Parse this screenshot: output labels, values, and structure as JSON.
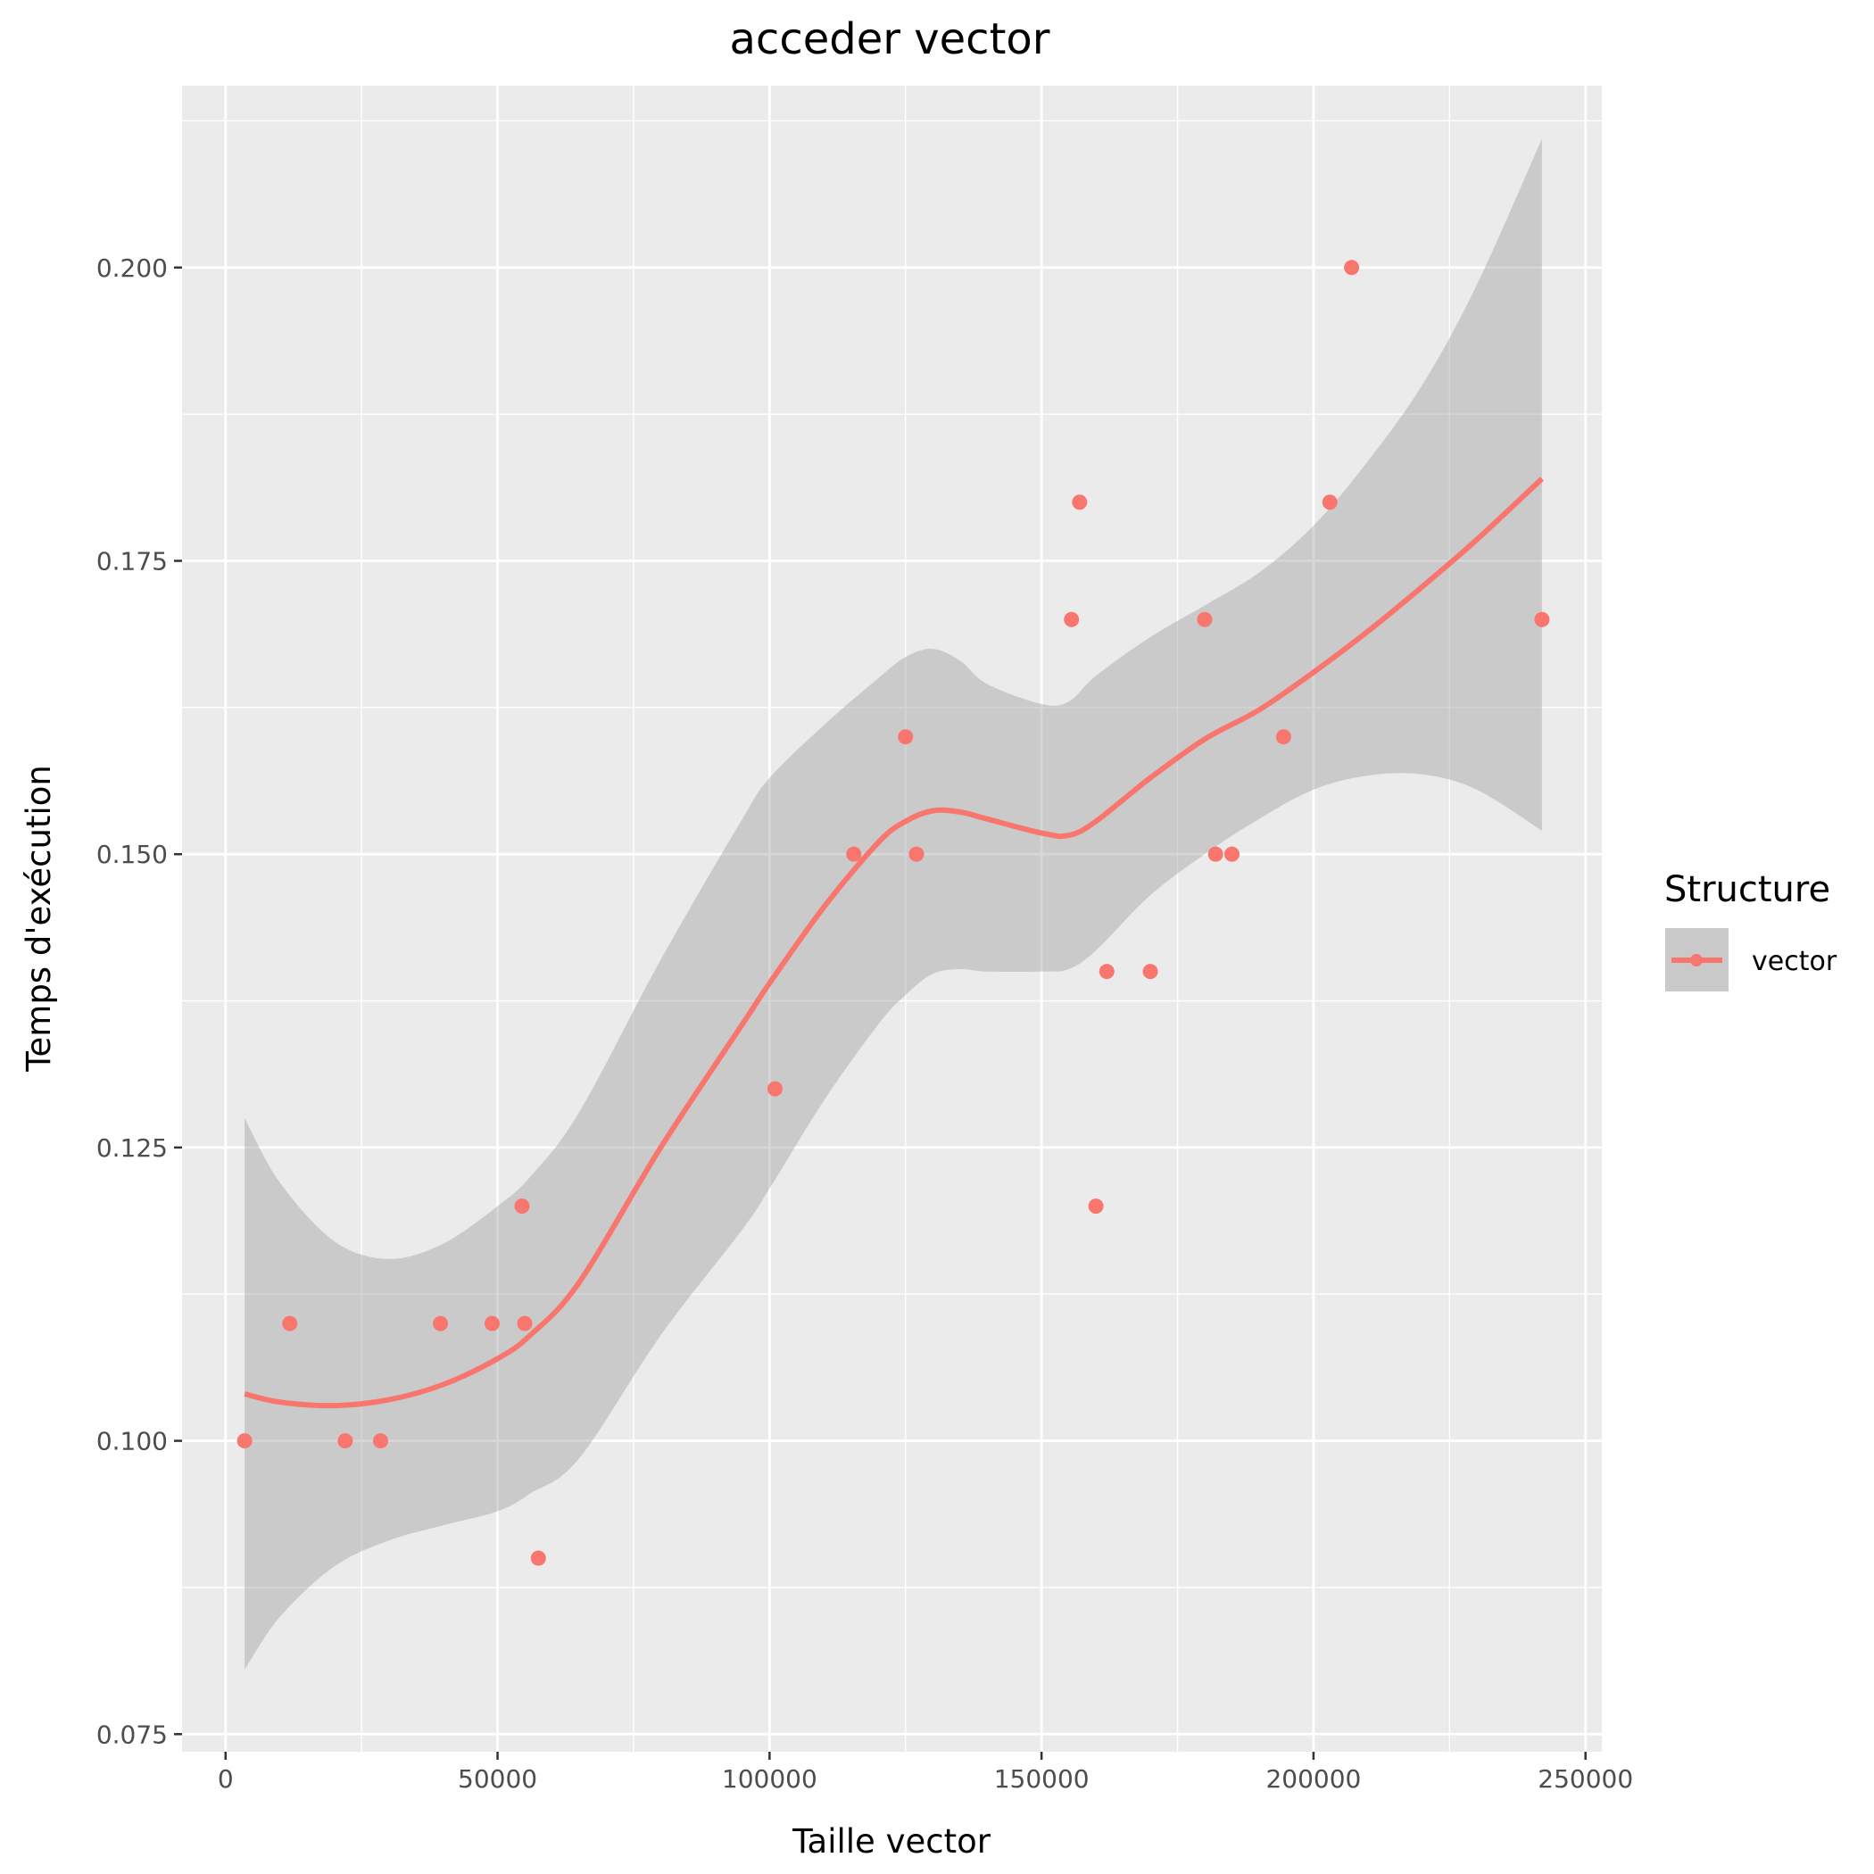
{
  "chart_data": {
    "type": "scatter",
    "title": "acceder vector",
    "xlabel": "Taille vector",
    "ylabel": "Temps d'exécution",
    "xlim": [
      -8000,
      253000
    ],
    "ylim": [
      0.0735,
      0.2155
    ],
    "x_ticks": [
      0,
      50000,
      100000,
      150000,
      200000,
      250000
    ],
    "x_tick_labels": [
      "0",
      "50000",
      "100000",
      "150000",
      "200000",
      "250000"
    ],
    "y_ticks": [
      0.075,
      0.1,
      0.125,
      0.15,
      0.175,
      0.2
    ],
    "y_tick_labels": [
      "0.075",
      "0.100",
      "0.125",
      "0.150",
      "0.175",
      "0.200"
    ],
    "grid": true,
    "legend": {
      "title": "Structure",
      "placement": "right",
      "entries": [
        "vector"
      ]
    },
    "colors": {
      "series": "#F8766D",
      "band": "#999999",
      "panel": "#EBEBEB",
      "grid": "#FFFFFF"
    },
    "series": [
      {
        "name": "vector",
        "points": [
          [
            3500,
            0.1
          ],
          [
            11800,
            0.11
          ],
          [
            22000,
            0.1
          ],
          [
            28500,
            0.1
          ],
          [
            39500,
            0.11
          ],
          [
            49000,
            0.11
          ],
          [
            54500,
            0.12
          ],
          [
            55000,
            0.11
          ],
          [
            57500,
            0.09
          ],
          [
            101000,
            0.13
          ],
          [
            115500,
            0.15
          ],
          [
            125000,
            0.16
          ],
          [
            127000,
            0.15
          ],
          [
            155500,
            0.17
          ],
          [
            157000,
            0.18
          ],
          [
            160000,
            0.12
          ],
          [
            162000,
            0.14
          ],
          [
            170000,
            0.14
          ],
          [
            180000,
            0.17
          ],
          [
            182000,
            0.15
          ],
          [
            185000,
            0.15
          ],
          [
            194500,
            0.16
          ],
          [
            203000,
            0.18
          ],
          [
            207000,
            0.2
          ],
          [
            242000,
            0.17
          ]
        ],
        "smooth": {
          "x": [
            3500,
            10000,
            20000,
            30000,
            40000,
            50000,
            56000,
            65000,
            80000,
            95000,
            100000,
            110000,
            120000,
            125000,
            130000,
            135000,
            140000,
            150000,
            155000,
            160000,
            170000,
            180000,
            190000,
            200000,
            210000,
            220000,
            230000,
            242000
          ],
          "y": [
            0.104,
            0.1033,
            0.103,
            0.1035,
            0.1048,
            0.107,
            0.109,
            0.1135,
            0.125,
            0.1355,
            0.139,
            0.1455,
            0.151,
            0.1528,
            0.1537,
            0.1536,
            0.153,
            0.1518,
            0.1516,
            0.1528,
            0.1565,
            0.1598,
            0.1623,
            0.1655,
            0.169,
            0.1728,
            0.1768,
            0.182
          ],
          "lower": [
            0.0805,
            0.085,
            0.0893,
            0.0915,
            0.0928,
            0.094,
            0.0955,
            0.0985,
            0.109,
            0.118,
            0.1215,
            0.129,
            0.1355,
            0.138,
            0.1398,
            0.1402,
            0.14,
            0.14,
            0.1402,
            0.1418,
            0.1465,
            0.15,
            0.153,
            0.1555,
            0.1567,
            0.1568,
            0.1555,
            0.152
          ],
          "upper": [
            0.1275,
            0.122,
            0.117,
            0.1155,
            0.1168,
            0.12,
            0.1225,
            0.128,
            0.141,
            0.153,
            0.1565,
            0.161,
            0.165,
            0.1668,
            0.1675,
            0.1665,
            0.1645,
            0.1628,
            0.163,
            0.1652,
            0.1685,
            0.1712,
            0.174,
            0.178,
            0.1835,
            0.19,
            0.1985,
            0.211
          ]
        }
      }
    ]
  }
}
